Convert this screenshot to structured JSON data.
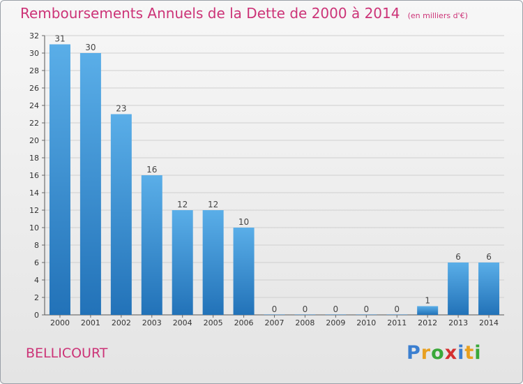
{
  "header": {
    "title": "Remboursements Annuels de la Dette de 2000 à 2014",
    "unit": "(en milliers d'€)"
  },
  "footer": {
    "commune": "BELLICOURT",
    "brand_letters": [
      "P",
      "r",
      "o",
      "x",
      "i",
      "t",
      "i"
    ],
    "brand_colors": [
      "#3b7fd0",
      "#e8a020",
      "#3aa83a",
      "#d43030",
      "#3b7fd0",
      "#e8a020",
      "#3aa83a"
    ]
  },
  "colors": {
    "title": "#cc3377",
    "bar_light": "#5aaee8",
    "bar_dark": "#2272b8",
    "grid": "#cfcfcf"
  },
  "chart_data": {
    "type": "bar",
    "title": "Remboursements Annuels de la Dette de 2000 à 2014",
    "subtitle": "(en milliers d'€)",
    "categories": [
      "2000",
      "2001",
      "2002",
      "2003",
      "2004",
      "2005",
      "2006",
      "2007",
      "2008",
      "2009",
      "2010",
      "2011",
      "2012",
      "2013",
      "2014"
    ],
    "values": [
      31,
      30,
      23,
      16,
      12,
      12,
      10,
      0,
      0,
      0,
      0,
      0,
      1,
      6,
      6
    ],
    "ylim": [
      0,
      32
    ],
    "yticks": [
      0,
      2,
      4,
      6,
      8,
      10,
      12,
      14,
      16,
      18,
      20,
      22,
      24,
      26,
      28,
      30,
      32
    ],
    "grid": true,
    "legend": "none"
  }
}
